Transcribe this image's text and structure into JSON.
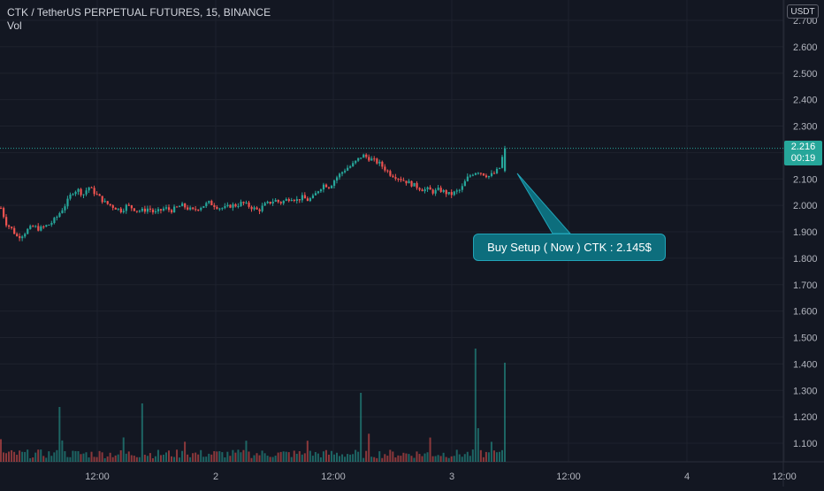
{
  "header": {
    "title": "CTK / TetherUS PERPETUAL FUTURES, 15, BINANCE",
    "vol_label": "Vol"
  },
  "currency": "USDT",
  "last_price": "2.216",
  "countdown": "00:19",
  "annotation": "Buy Setup ( Now ) CTK : 2.145$",
  "colors": {
    "background": "#131722",
    "up": "#26a69a",
    "down": "#ef5350",
    "grid": "#1e222d",
    "callout": "#0d6e7d"
  },
  "chart_data": {
    "type": "candlestick",
    "y_axis": {
      "ticks": [
        "2.700",
        "2.600",
        "2.500",
        "2.400",
        "2.300",
        "2.200",
        "2.100",
        "2.000",
        "1.900",
        "1.800",
        "1.700",
        "1.600",
        "1.500",
        "1.400",
        "1.300",
        "1.200",
        "1.100"
      ],
      "range": [
        1.03,
        2.72
      ]
    },
    "x_axis": {
      "ticks": [
        "12:00",
        "2",
        "12:00",
        "3",
        "12:00",
        "4",
        "12:00"
      ]
    },
    "current_price": 2.216,
    "series_close": [
      1.99,
      1.93,
      1.91,
      1.88,
      1.89,
      1.91,
      1.92,
      1.91,
      1.92,
      1.93,
      1.95,
      1.98,
      2.01,
      2.05,
      2.06,
      2.04,
      2.07,
      2.05,
      2.03,
      2.01,
      2.0,
      1.99,
      1.98,
      2.0,
      1.99,
      1.98,
      1.98,
      1.99,
      1.97,
      1.98,
      1.99,
      1.98,
      1.99,
      2.0,
      1.99,
      1.98,
      1.99,
      2.0,
      2.01,
      2.0,
      1.99,
      1.99,
      2.0,
      2.0,
      2.01,
      2.0,
      1.99,
      1.98,
      2.0,
      2.01,
      2.02,
      2.01,
      2.02,
      2.03,
      2.02,
      2.03,
      2.02,
      2.03,
      2.06,
      2.08,
      2.07,
      2.1,
      2.12,
      2.14,
      2.15,
      2.17,
      2.19,
      2.18,
      2.17,
      2.16,
      2.14,
      2.12,
      2.11,
      2.1,
      2.09,
      2.08,
      2.07,
      2.06,
      2.06,
      2.05,
      2.06,
      2.05,
      2.04,
      2.05,
      2.06,
      2.1,
      2.12,
      2.13,
      2.12,
      2.11,
      2.12,
      2.14,
      2.22
    ],
    "volume_peaks": {
      "max_bar_relative": 1.0,
      "note_free": true
    }
  }
}
